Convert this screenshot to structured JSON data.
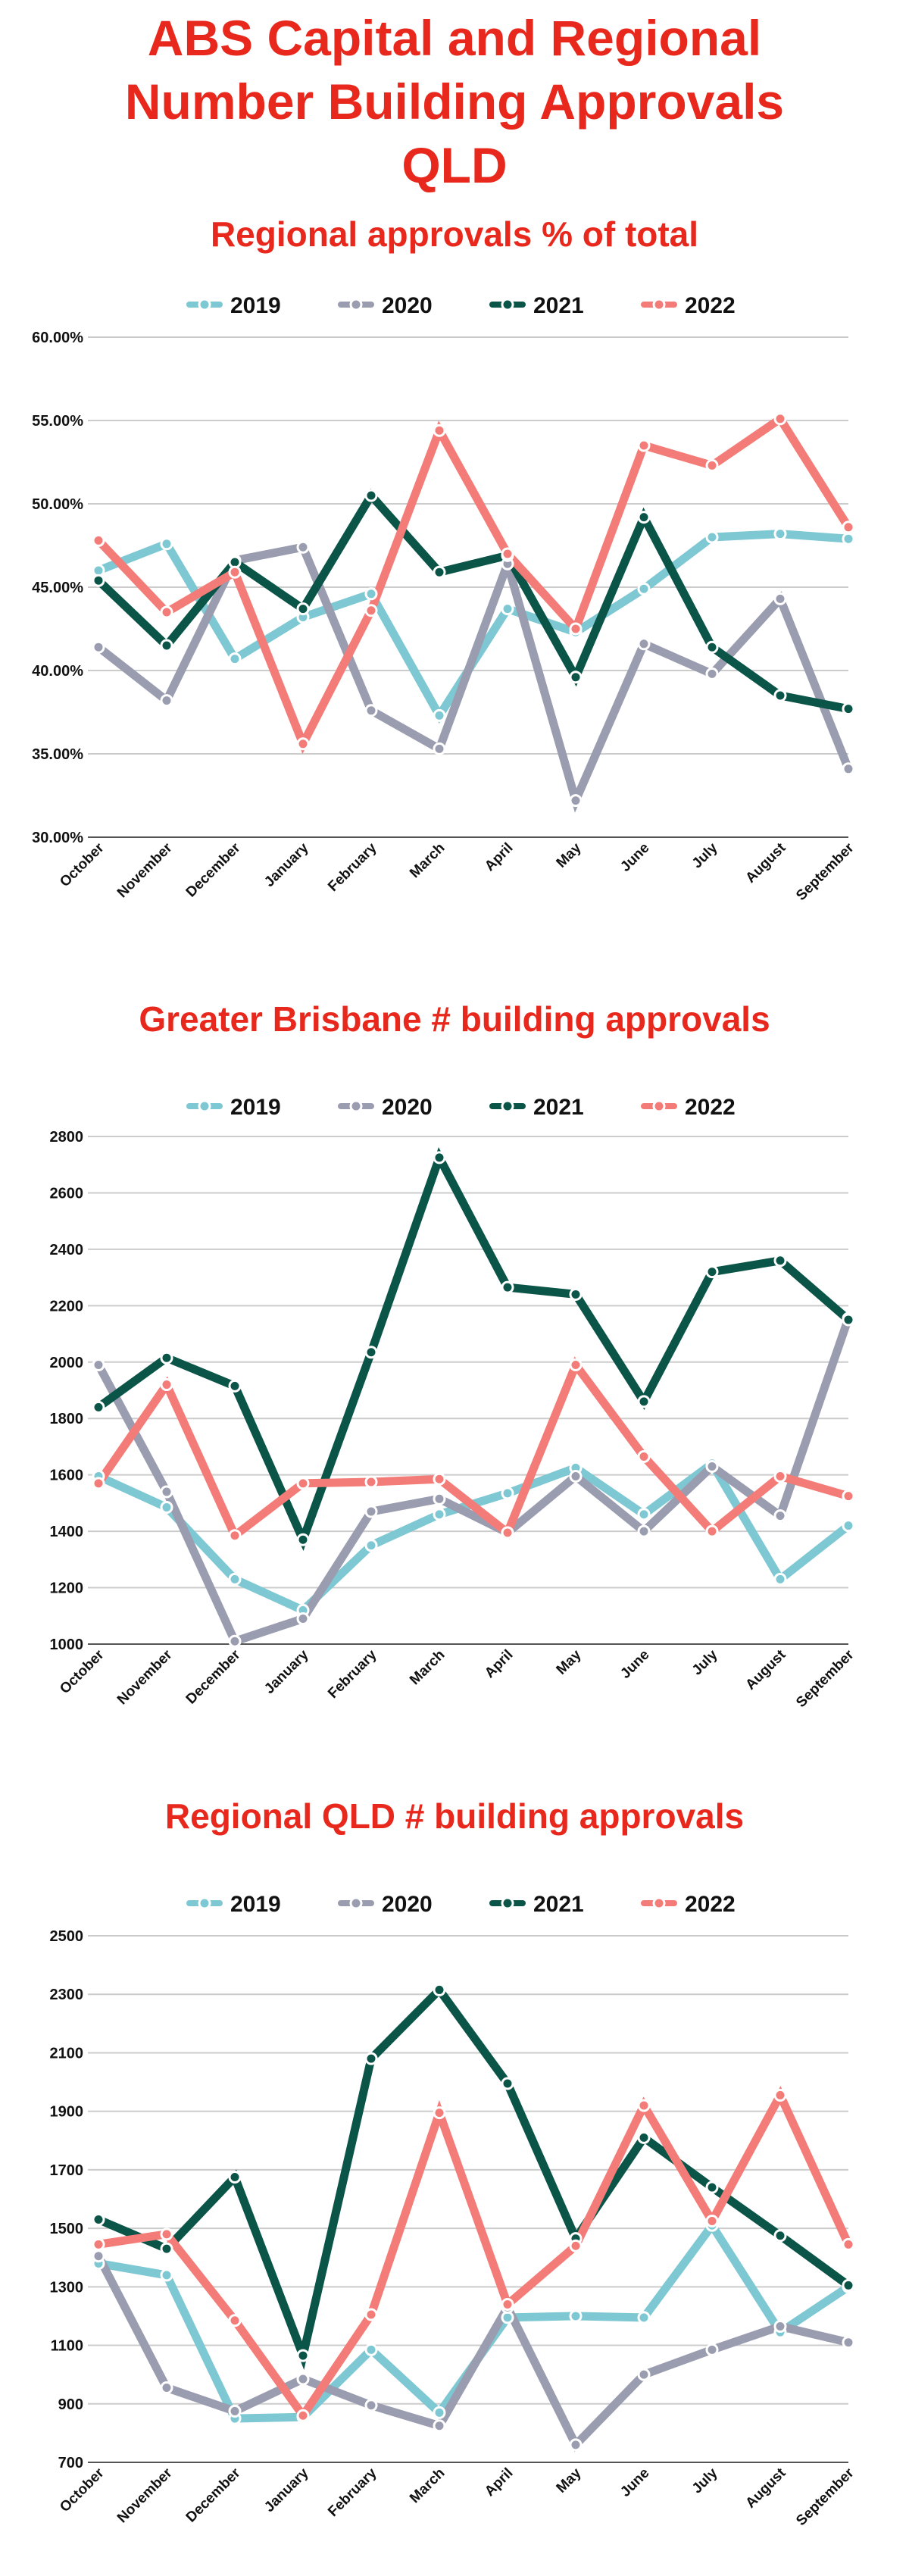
{
  "header": {
    "title_lines": [
      "ABS Capital and Regional",
      "Number  Building Approvals",
      "QLD"
    ]
  },
  "colors": {
    "title": "#e8281c",
    "series_2019": "#7ec8d3",
    "series_2020": "#9a9cb0",
    "series_2021": "#0b5448",
    "series_2022": "#f47c78",
    "grid": "#cccccc"
  },
  "chart_data": [
    {
      "type": "line",
      "title": "Regional approvals % of total",
      "categories": [
        "October",
        "November",
        "December",
        "January",
        "February",
        "March",
        "April",
        "May",
        "June",
        "July",
        "August",
        "September"
      ],
      "ylim": [
        30,
        60
      ],
      "yticks": [
        30,
        35,
        40,
        45,
        50,
        55,
        60
      ],
      "y_tick_labels": [
        "30.00%",
        "35.00%",
        "40.00%",
        "45.00%",
        "50.00%",
        "55.00%",
        "60.00%"
      ],
      "legend": "top",
      "series": [
        {
          "name": "2019",
          "values": [
            46.0,
            47.6,
            40.7,
            43.2,
            44.6,
            37.3,
            43.7,
            42.3,
            44.9,
            48.0,
            48.2,
            47.9
          ]
        },
        {
          "name": "2020",
          "values": [
            41.4,
            38.2,
            46.6,
            47.4,
            37.6,
            35.3,
            46.4,
            32.2,
            41.6,
            39.8,
            44.3,
            34.1
          ]
        },
        {
          "name": "2021",
          "values": [
            45.4,
            41.5,
            46.5,
            43.7,
            50.5,
            45.9,
            46.9,
            39.6,
            49.2,
            41.4,
            38.5,
            37.7
          ]
        },
        {
          "name": "2022",
          "values": [
            47.8,
            43.5,
            45.9,
            35.6,
            43.6,
            54.4,
            47.0,
            42.5,
            53.5,
            52.3,
            55.1,
            48.6
          ]
        }
      ]
    },
    {
      "type": "line",
      "title": "Greater Brisbane # building approvals",
      "categories": [
        "October",
        "November",
        "December",
        "January",
        "February",
        "March",
        "April",
        "May",
        "June",
        "July",
        "August",
        "September"
      ],
      "ylim": [
        1000,
        2800
      ],
      "yticks": [
        1000,
        1200,
        1400,
        1600,
        1800,
        2000,
        2200,
        2400,
        2600,
        2800
      ],
      "y_tick_labels": [
        "1000",
        "1200",
        "1400",
        "1600",
        "1800",
        "2000",
        "2200",
        "2400",
        "2600",
        "2800"
      ],
      "legend": "top",
      "series": [
        {
          "name": "2019",
          "values": [
            1595,
            1485,
            1230,
            1120,
            1350,
            1460,
            1535,
            1625,
            1460,
            1640,
            1230,
            1420
          ]
        },
        {
          "name": "2020",
          "values": [
            1990,
            1540,
            1010,
            1090,
            1470,
            1515,
            1395,
            1595,
            1400,
            1630,
            1455,
            2155
          ]
        },
        {
          "name": "2021",
          "values": [
            1840,
            2015,
            1915,
            1370,
            2035,
            2725,
            2265,
            2240,
            1860,
            2320,
            2360,
            2150
          ]
        },
        {
          "name": "2022",
          "values": [
            1570,
            1920,
            1385,
            1570,
            1575,
            1585,
            1395,
            1990,
            1665,
            1400,
            1595,
            1525
          ]
        }
      ]
    },
    {
      "type": "line",
      "title": "Regional QLD  # building approvals",
      "categories": [
        "October",
        "November",
        "December",
        "January",
        "February",
        "March",
        "April",
        "May",
        "June",
        "July",
        "August",
        "September"
      ],
      "ylim": [
        700,
        2500
      ],
      "yticks": [
        700,
        900,
        1100,
        1300,
        1500,
        1700,
        1900,
        2100,
        2300,
        2500
      ],
      "y_tick_labels": [
        "700",
        "900",
        "1100",
        "1300",
        "1500",
        "1700",
        "1900",
        "2100",
        "2300",
        "2500"
      ],
      "legend": "top",
      "series": [
        {
          "name": "2019",
          "values": [
            1380,
            1340,
            850,
            855,
            1085,
            870,
            1195,
            1200,
            1195,
            1510,
            1145,
            1300
          ]
        },
        {
          "name": "2020",
          "values": [
            1405,
            955,
            875,
            985,
            895,
            825,
            1230,
            760,
            1000,
            1085,
            1165,
            1110
          ]
        },
        {
          "name": "2021",
          "values": [
            1530,
            1430,
            1675,
            1065,
            2080,
            2315,
            1995,
            1465,
            1810,
            1640,
            1475,
            1305
          ]
        },
        {
          "name": "2022",
          "values": [
            1445,
            1480,
            1185,
            860,
            1205,
            1895,
            1240,
            1440,
            1920,
            1525,
            1955,
            1445
          ]
        }
      ]
    }
  ]
}
